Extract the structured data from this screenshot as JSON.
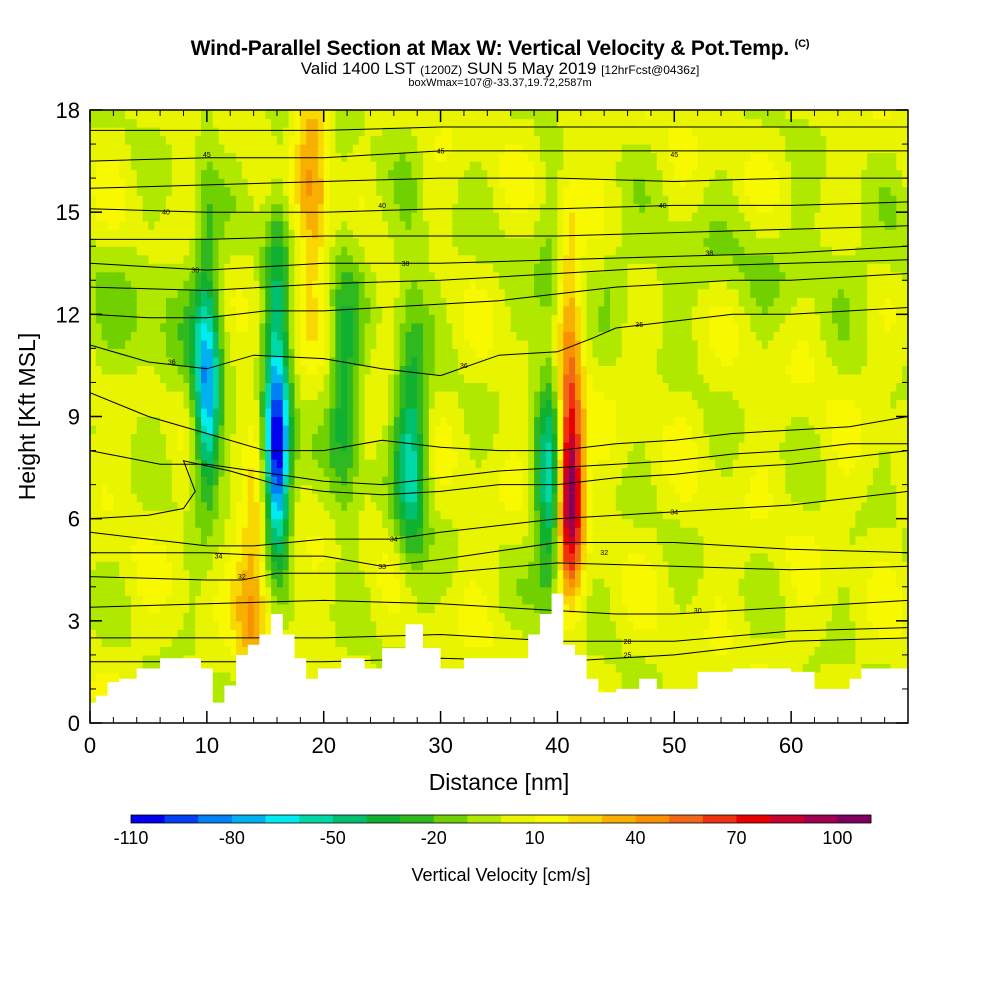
{
  "title": {
    "main": "Wind-Parallel Section at Max W: Vertical Velocity & Pot.Temp.",
    "main_tag": "(C)",
    "valid_prefix": "Valid 1400 LST",
    "valid_utc": "(1200Z)",
    "valid_date": "SUN 5 May 2019",
    "valid_fcst": "[12hrFcst@0436z]",
    "box_info": "boxWmax=107@-33.37,19.72,2587m"
  },
  "colors": {
    "background": "#ffffff",
    "terrain": "#ffffff",
    "contour": "#000000",
    "palette": [
      "#0000ee",
      "#0040f5",
      "#0080f5",
      "#00b0f0",
      "#00ecf0",
      "#00d8a8",
      "#00c070",
      "#10b030",
      "#30b820",
      "#70d000",
      "#b0e800",
      "#e8f400",
      "#f8f800",
      "#f8d800",
      "#f8b000",
      "#f89000",
      "#f06818",
      "#f03010",
      "#e80000",
      "#c8002c",
      "#a00050",
      "#800060"
    ]
  },
  "chart_data": {
    "type": "heatmap",
    "xlabel": "Distance [nm]",
    "ylabel": "Height [Kft MSL]",
    "xlim": [
      0,
      70
    ],
    "ylim": [
      0,
      18
    ],
    "x_ticks": [
      "0",
      "10",
      "20",
      "30",
      "40",
      "50",
      "60"
    ],
    "y_ticks": [
      "0",
      "3",
      "6",
      "9",
      "12",
      "15",
      "18"
    ],
    "colorbar": {
      "title": "Vertical Velocity [cm/s]",
      "levels": [
        -110,
        -100,
        -90,
        -80,
        -70,
        -60,
        -50,
        -40,
        -30,
        -20,
        -10,
        0,
        10,
        20,
        30,
        40,
        50,
        60,
        70,
        80,
        90,
        100,
        110
      ],
      "labels": [
        "-110",
        "-80",
        "-50",
        "-20",
        "10",
        "40",
        "70",
        "100"
      ]
    },
    "vertical_velocity_features": [
      {
        "x": 10,
        "y": 9.3,
        "w": -68,
        "note": "downdraft"
      },
      {
        "x": 16,
        "y": 7.8,
        "w": -105,
        "note": "strongest downdraft"
      },
      {
        "x": 21.8,
        "y": 9,
        "w": -35,
        "note": "downdraft"
      },
      {
        "x": 27.5,
        "y": 7.5,
        "w": -48,
        "note": "downdraft"
      },
      {
        "x": 39.5,
        "y": 6.5,
        "w": -55,
        "note": "downdraft"
      },
      {
        "x": 41,
        "y": 6.8,
        "w": 107,
        "note": "max updraft"
      },
      {
        "x": 19,
        "y": 15.5,
        "w": 35,
        "note": "updraft aloft"
      },
      {
        "x": 14,
        "y": 3.4,
        "w": 30,
        "note": "low-level updraft"
      }
    ],
    "terrain": {
      "x": [
        0,
        0.5,
        1.5,
        2.5,
        4,
        6,
        8,
        9.5,
        10.5,
        11.5,
        12.5,
        13.5,
        14.5,
        15.5,
        16.5,
        17.5,
        18.5,
        19.5,
        21.5,
        23.5,
        25,
        25.5,
        27,
        28.5,
        30,
        32,
        34,
        36.5,
        37.5,
        38.5,
        39.5,
        40.5,
        41.5,
        42.5,
        43.5,
        45,
        47,
        48.5,
        52,
        55,
        58,
        60,
        62,
        64,
        65,
        66,
        68,
        70
      ],
      "heights": [
        0.6,
        0.8,
        1.2,
        1.3,
        1.6,
        1.9,
        1.9,
        1.6,
        0.6,
        1.1,
        2.0,
        2.3,
        2.6,
        3.2,
        2.6,
        1.9,
        1.3,
        1.6,
        1.9,
        1.6,
        2.2,
        2.2,
        2.9,
        2.2,
        1.6,
        1.9,
        1.9,
        1.9,
        2.6,
        3.2,
        3.8,
        2.3,
        2.0,
        1.3,
        0.9,
        1.0,
        1.3,
        1.0,
        1.5,
        1.6,
        1.6,
        1.5,
        1.0,
        1.0,
        1.3,
        1.6,
        1.6,
        1.6
      ]
    },
    "theta_contours": [
      {
        "label": "25",
        "x": [
          0,
          10,
          20,
          30,
          40,
          45,
          50,
          60,
          70
        ],
        "y": [
          1.8,
          1.8,
          1.8,
          1.9,
          1.8,
          1.9,
          2.0,
          2.4,
          2.5
        ],
        "labels_at": [
          [
            46,
            2.0
          ]
        ]
      },
      {
        "label": "28",
        "x": [
          0,
          10,
          20,
          30,
          40,
          45,
          50,
          60,
          70
        ],
        "y": [
          2.5,
          2.5,
          2.5,
          2.6,
          2.4,
          2.4,
          2.4,
          2.7,
          2.8
        ],
        "labels_at": [
          [
            46,
            2.4
          ]
        ]
      },
      {
        "label": "30",
        "x": [
          0,
          10,
          20,
          30,
          40,
          45,
          50,
          60,
          70
        ],
        "y": [
          3.4,
          3.5,
          3.6,
          3.5,
          3.3,
          3.2,
          3.2,
          3.4,
          3.6
        ],
        "labels_at": [
          [
            52,
            3.3
          ]
        ]
      },
      {
        "label": "32",
        "x": [
          0,
          10,
          13,
          16,
          20,
          30,
          40,
          50,
          60,
          70
        ],
        "y": [
          4.3,
          4.2,
          4.2,
          4.4,
          4.4,
          4.4,
          4.7,
          4.6,
          4.5,
          4.6
        ],
        "labels_at": [
          [
            13,
            4.3
          ],
          [
            44,
            5.0
          ]
        ]
      },
      {
        "label": "33",
        "x": [
          0,
          10,
          16,
          20,
          25,
          30,
          40,
          50,
          60,
          70
        ],
        "y": [
          5.0,
          5.0,
          4.9,
          4.9,
          4.6,
          4.8,
          5.3,
          5.3,
          5.1,
          5.0
        ],
        "labels_at": [
          [
            25,
            4.6
          ]
        ]
      },
      {
        "label": "34",
        "x": [
          0,
          10,
          14,
          20,
          26,
          30,
          40,
          50,
          60,
          70
        ],
        "y": [
          5.6,
          5.2,
          5.2,
          5.4,
          5.4,
          5.6,
          6.0,
          6.2,
          6.4,
          6.8
        ],
        "labels_at": [
          [
            11,
            4.9
          ],
          [
            26,
            5.4
          ],
          [
            50,
            6.2
          ]
        ]
      },
      {
        "label": "",
        "x": [
          0,
          5,
          8,
          9,
          8,
          12,
          16,
          20,
          25,
          30,
          35,
          40,
          45,
          50,
          55,
          60,
          65,
          70
        ],
        "y": [
          6.0,
          6.1,
          6.3,
          6.8,
          7.7,
          7.4,
          7.0,
          6.8,
          6.7,
          6.8,
          7.0,
          7.0,
          7.2,
          7.3,
          7.5,
          7.6,
          7.8,
          8.0
        ],
        "labels_at": []
      },
      {
        "label": "",
        "x": [
          0,
          3,
          6,
          10,
          14,
          16,
          20,
          25,
          30,
          35,
          40,
          45,
          50,
          55,
          60,
          65,
          70
        ],
        "y": [
          8.0,
          7.8,
          7.6,
          7.6,
          7.4,
          7.3,
          7.1,
          7.0,
          7.2,
          7.4,
          7.5,
          7.6,
          7.7,
          7.9,
          8.0,
          8.2,
          8.2
        ],
        "labels_at": []
      },
      {
        "label": "",
        "x": [
          0,
          5,
          10,
          15,
          20,
          25,
          30,
          35,
          40,
          45,
          50,
          55,
          60,
          65,
          70
        ],
        "y": [
          9.7,
          9.0,
          8.5,
          8.0,
          8.0,
          8.3,
          8.1,
          8.0,
          8.0,
          8.2,
          8.3,
          8.5,
          8.6,
          8.7,
          9.0
        ],
        "labels_at": []
      },
      {
        "label": "36",
        "x": [
          0,
          5,
          10,
          14,
          20,
          25,
          30,
          35,
          40,
          43,
          45,
          50,
          55,
          60,
          65,
          70
        ],
        "y": [
          11.1,
          10.6,
          10.4,
          10.8,
          10.7,
          10.4,
          10.2,
          10.8,
          10.9,
          11.3,
          11.6,
          11.8,
          12.0,
          12.0,
          12.1,
          12.2
        ],
        "labels_at": [
          [
            7,
            10.6
          ],
          [
            32,
            10.5
          ],
          [
            47,
            11.7
          ]
        ]
      },
      {
        "label": "",
        "x": [
          0,
          5,
          10,
          15,
          20,
          25,
          30,
          35,
          40,
          45,
          50,
          55,
          60,
          65,
          70
        ],
        "y": [
          12.0,
          11.9,
          11.9,
          12.1,
          12.1,
          12.2,
          12.3,
          12.4,
          12.6,
          12.8,
          12.9,
          13.0,
          13.0,
          13.1,
          13.2
        ],
        "labels_at": []
      },
      {
        "label": "",
        "x": [
          0,
          10,
          20,
          30,
          40,
          50,
          60,
          70
        ],
        "y": [
          12.8,
          12.7,
          12.9,
          13.0,
          13.2,
          13.4,
          13.5,
          13.6
        ],
        "labels_at": []
      },
      {
        "label": "38",
        "x": [
          0,
          10,
          20,
          30,
          40,
          50,
          60,
          70
        ],
        "y": [
          13.5,
          13.3,
          13.5,
          13.5,
          13.6,
          13.7,
          13.8,
          14.0
        ],
        "labels_at": [
          [
            9,
            13.3
          ],
          [
            27,
            13.5
          ],
          [
            53,
            13.8
          ]
        ]
      },
      {
        "label": "",
        "x": [
          0,
          10,
          20,
          30,
          40,
          50,
          60,
          70
        ],
        "y": [
          14.2,
          14.2,
          14.3,
          14.3,
          14.3,
          14.4,
          14.5,
          14.6
        ],
        "labels_at": []
      },
      {
        "label": "40",
        "x": [
          0,
          10,
          20,
          30,
          40,
          50,
          60,
          70
        ],
        "y": [
          15.1,
          15.0,
          15.0,
          15.1,
          15.1,
          15.2,
          15.2,
          15.3
        ],
        "labels_at": [
          [
            6.5,
            15.0
          ],
          [
            25,
            15.2
          ],
          [
            49,
            15.2
          ]
        ]
      },
      {
        "label": "",
        "x": [
          0,
          10,
          20,
          30,
          40,
          50,
          60,
          70
        ],
        "y": [
          15.7,
          15.8,
          15.9,
          16.0,
          16.0,
          15.9,
          16.0,
          16.0
        ],
        "labels_at": []
      },
      {
        "label": "45",
        "x": [
          0,
          10,
          20,
          30,
          40,
          50,
          60,
          70
        ],
        "y": [
          16.5,
          16.6,
          16.6,
          16.8,
          16.8,
          16.8,
          16.8,
          16.8
        ],
        "labels_at": [
          [
            10,
            16.7
          ],
          [
            30,
            16.8
          ],
          [
            50,
            16.7
          ]
        ]
      },
      {
        "label": "",
        "x": [
          0,
          10,
          20,
          30,
          40,
          50,
          60,
          70
        ],
        "y": [
          17.4,
          17.4,
          17.4,
          17.5,
          17.5,
          17.5,
          17.5,
          17.5
        ],
        "labels_at": []
      }
    ]
  }
}
